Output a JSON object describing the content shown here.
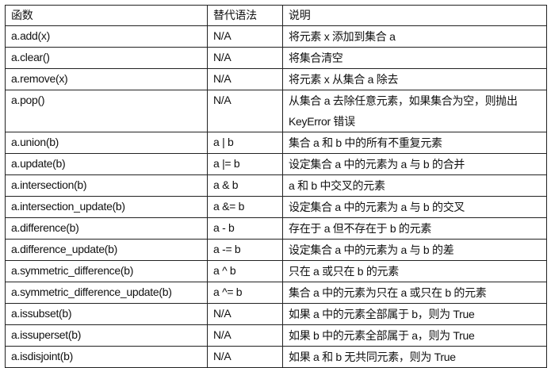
{
  "table": {
    "headers": [
      "函数",
      "替代语法",
      "说明"
    ],
    "rows": [
      [
        "a.add(x)",
        "N/A",
        "将元素 x 添加到集合 a"
      ],
      [
        "a.clear()",
        "N/A",
        "将集合清空"
      ],
      [
        "a.remove(x)",
        "N/A",
        "将元素 x 从集合 a 除去"
      ],
      [
        "a.pop()",
        "N/A",
        "从集合 a 去除任意元素，如果集合为空，则抛出 KeyError 错误"
      ],
      [
        "a.union(b)",
        "a | b",
        "集合 a 和 b 中的所有不重复元素"
      ],
      [
        "a.update(b)",
        "a |= b",
        "设定集合 a 中的元素为 a 与 b 的合并"
      ],
      [
        "a.intersection(b)",
        "a & b",
        "a 和 b 中交叉的元素"
      ],
      [
        "a.intersection_update(b)",
        "a &= b",
        "设定集合 a 中的元素为 a 与 b 的交叉"
      ],
      [
        "a.difference(b)",
        "a - b",
        "存在于 a 但不存在于 b 的元素"
      ],
      [
        "a.difference_update(b)",
        "a -= b",
        "设定集合 a 中的元素为 a 与 b 的差"
      ],
      [
        "a.symmetric_difference(b)",
        "a ^ b",
        "只在 a 或只在 b 的元素"
      ],
      [
        "a.symmetric_difference_update(b)",
        "a ^= b",
        "集合 a 中的元素为只在 a 或只在 b 的元素"
      ],
      [
        "a.issubset(b)",
        "N/A",
        "如果 a 中的元素全部属于 b，则为 True"
      ],
      [
        "a.issuperset(b)",
        "N/A",
        "如果 b 中的元素全部属于 a，则为 True"
      ],
      [
        "a.isdisjoint(b)",
        "N/A",
        "如果 a 和 b 无共同元素，则为 True"
      ]
    ]
  }
}
